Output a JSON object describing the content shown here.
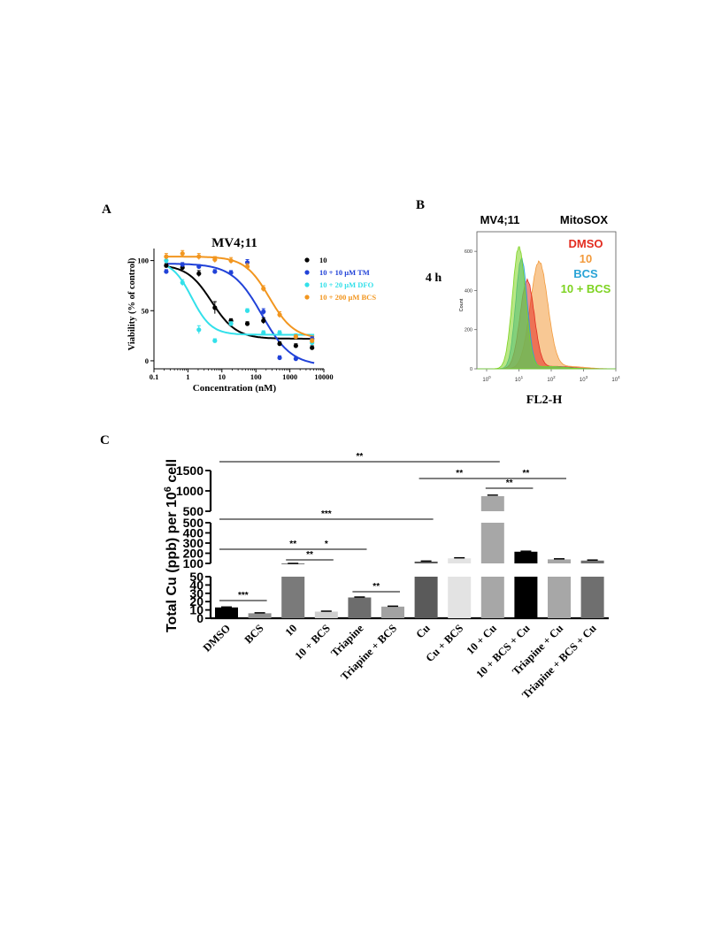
{
  "panels": {
    "A": "A",
    "B": "B",
    "C": "C"
  },
  "chart_data": [
    {
      "type": "scatter",
      "panel": "A",
      "title": "MV4;11",
      "xlabel": "Concentration (nM)",
      "ylabel": "Viability (% of control)",
      "xscale": "log",
      "xlim": [
        0.1,
        10000
      ],
      "ylim": [
        -8,
        112
      ],
      "xticks": [
        "0.1",
        "1",
        "10",
        "100",
        "1000",
        "10000"
      ],
      "yticks": [
        "0",
        "50",
        "100"
      ],
      "legend_position": "right",
      "series": [
        {
          "name": "10",
          "color": "#000000",
          "x": [
            0.23,
            0.69,
            2.1,
            6.2,
            18.5,
            56,
            167,
            500,
            1500,
            4500
          ],
          "y": [
            95,
            93,
            87,
            53,
            40,
            37,
            40,
            17,
            15,
            13
          ],
          "err": [
            2,
            2,
            3,
            6,
            2,
            2,
            3,
            2,
            2,
            2
          ],
          "fit": {
            "top": 96,
            "bottom": 22,
            "ec50": 5,
            "hill": 1.2
          }
        },
        {
          "name": "10 + 10 µM TM",
          "color": "#2142d8",
          "x": [
            0.23,
            0.69,
            2.1,
            6.2,
            18.5,
            56,
            167,
            500,
            1500,
            4500
          ],
          "y": [
            89,
            96,
            94,
            89,
            88,
            98,
            49,
            3,
            2,
            22
          ],
          "err": [
            2,
            2,
            2,
            2,
            2,
            3,
            3,
            2,
            2,
            2
          ],
          "fit": {
            "top": 97,
            "bottom": -5,
            "ec50": 150,
            "hill": 1.0
          }
        },
        {
          "name": "10 + 20 µM DFO",
          "color": "#33e0ea",
          "x": [
            0.23,
            0.69,
            2.1,
            6.2,
            18.5,
            56,
            167,
            500,
            1500,
            4500
          ],
          "y": [
            100,
            78,
            31,
            20,
            37,
            50,
            28,
            28,
            25,
            18
          ],
          "err": [
            3,
            3,
            4,
            2,
            2,
            2,
            2,
            2,
            2,
            2
          ],
          "fit": {
            "top": 100,
            "bottom": 26,
            "ec50": 1.3,
            "hill": 1.5
          }
        },
        {
          "name": "10 + 200 µM BCS",
          "color": "#f2961f",
          "x": [
            0.23,
            0.69,
            2.1,
            6.2,
            18.5,
            56,
            167,
            500,
            1500,
            4500
          ],
          "y": [
            104,
            107,
            104,
            101,
            100,
            94,
            72,
            46,
            24,
            20
          ],
          "err": [
            3,
            3,
            3,
            3,
            3,
            3,
            3,
            3,
            2,
            2
          ],
          "fit": {
            "top": 104,
            "bottom": 22,
            "ec50": 250,
            "hill": 1.2
          }
        }
      ]
    },
    {
      "type": "area",
      "panel": "B",
      "title": "MV4;11",
      "subtitle": "MitoSOX",
      "row_label": "4 h",
      "xlabel": "FL2-H",
      "ylabel": "Count",
      "xscale": "log",
      "xlim": [
        0.5,
        10000
      ],
      "ylim": [
        0,
        700
      ],
      "xticks": [
        "10",
        "10",
        "10",
        "10",
        "10"
      ],
      "xtick_exponents": [
        "0",
        "1",
        "2",
        "3",
        "4"
      ],
      "yticks": [
        "0",
        "200",
        "400",
        "600"
      ],
      "legend_position": "top-right",
      "series": [
        {
          "name": "DMSO",
          "color": "#e32c20",
          "peak_x": 18,
          "peak_y": 450,
          "spread": 0.22
        },
        {
          "name": "10",
          "color": "#f29a3c",
          "peak_x": 42,
          "peak_y": 545,
          "spread": 0.27
        },
        {
          "name": "BCS",
          "color": "#29a3d6",
          "peak_x": 12,
          "peak_y": 560,
          "spread": 0.18
        },
        {
          "name": "10 + BCS",
          "color": "#7ed321",
          "peak_x": 10,
          "peak_y": 620,
          "spread": 0.2
        }
      ]
    },
    {
      "type": "bar",
      "panel": "C",
      "ylabel": "Total Cu (ppb) per 10",
      "ylabel_superscript": "6",
      "ylabel_tail": " cell",
      "y_segments": [
        {
          "range": [
            0,
            50
          ],
          "ticks": [
            "0",
            "10",
            "20",
            "30",
            "40",
            "50"
          ]
        },
        {
          "range": [
            100,
            500
          ],
          "ticks": [
            "100",
            "200",
            "300",
            "400",
            "500"
          ]
        },
        {
          "range": [
            500,
            1500
          ],
          "ticks": [
            "500",
            "1000",
            "1500"
          ]
        }
      ],
      "categories": [
        "DMSO",
        "BCS",
        "10",
        "10 + BCS",
        "Triapine",
        "Triapine + BCS",
        "Cu",
        "Cu + BCS",
        "10 + Cu",
        "10 + BCS + Cu",
        "Triapine + Cu",
        "Triapine + BCS + Cu"
      ],
      "values": [
        13,
        6,
        75,
        8,
        25,
        14,
        118,
        150,
        870,
        215,
        140,
        128
      ],
      "errors": [
        0.5,
        0.5,
        3,
        0.5,
        0.5,
        0.5,
        5,
        5,
        25,
        5,
        5,
        5
      ],
      "colors": [
        "#000000",
        "#8f8f8f",
        "#7a7a7a",
        "#cfcfcf",
        "#6d6d6d",
        "#a2a2a2",
        "#5a5a5a",
        "#e3e3e3",
        "#a7a7a7",
        "#000000",
        "#a7a7a7",
        "#6f6f6f"
      ],
      "significance": [
        "**",
        "**",
        "**",
        "**",
        "***",
        "**",
        "*",
        "**",
        "***",
        "**"
      ]
    }
  ]
}
